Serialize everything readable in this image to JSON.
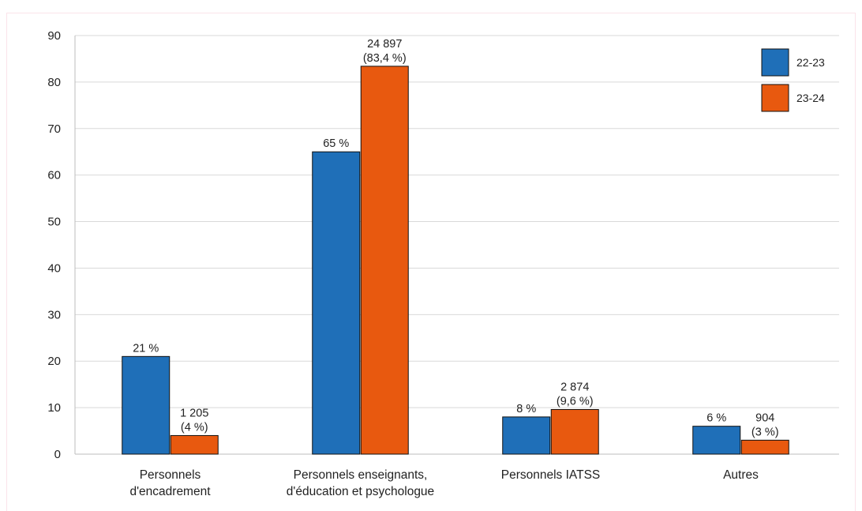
{
  "chart_data": {
    "type": "bar",
    "categories": [
      [
        "Personnels",
        "d'encadrement"
      ],
      [
        "Personnels enseignants,",
        "d'éducation et psychologue"
      ],
      [
        "Personnels IATSS"
      ],
      [
        "Autres"
      ]
    ],
    "series": [
      {
        "name": "22-23",
        "color": "#1f6fb8",
        "values": [
          21,
          65,
          8,
          6
        ],
        "labels": [
          [
            "21 %"
          ],
          [
            "65 %"
          ],
          [
            "8 %"
          ],
          [
            "6 %"
          ]
        ]
      },
      {
        "name": "23-24",
        "color": "#e8590f",
        "values": [
          4,
          83.4,
          9.6,
          3
        ],
        "labels": [
          [
            "1 205",
            "(4 %)"
          ],
          [
            "24 897",
            "(83,4 %)"
          ],
          [
            "2 874",
            "(9,6 %)"
          ],
          [
            "904",
            "(3 %)"
          ]
        ]
      }
    ],
    "ylim": [
      0,
      90
    ],
    "yticks": [
      0,
      10,
      20,
      30,
      40,
      50,
      60,
      70,
      80,
      90
    ],
    "grid": true,
    "legend": "top-right",
    "title": "",
    "xlabel": "",
    "ylabel": ""
  }
}
